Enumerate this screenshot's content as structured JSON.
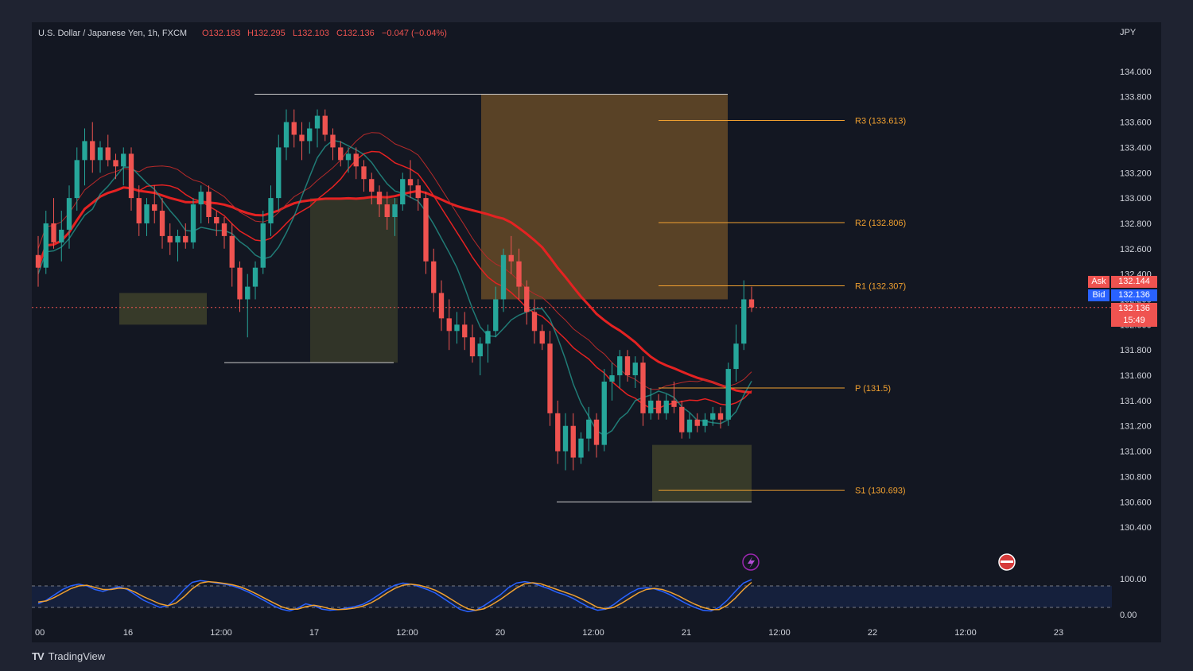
{
  "header": {
    "symbol": "U.S. Dollar / Japanese Yen, 1h, FXCM",
    "open": "O132.183",
    "high": "H132.295",
    "low": "L132.103",
    "close": "C132.136",
    "change": "−0.047 (−0.04%)"
  },
  "currency": "JPY",
  "brand": "TradingView",
  "quotes": {
    "ask_label": "Ask",
    "ask_value": "132.144",
    "bid_label": "Bid",
    "bid_value": "132.136",
    "last_value": "132.136",
    "countdown": "15:49"
  },
  "colors": {
    "background": "#131722",
    "up": "#26a69a",
    "down": "#ef5350",
    "pivot": "#f0a030",
    "ema": "#e52222",
    "stoch_k": "#2962ff",
    "stoch_d": "#f0a030"
  },
  "chart_data": [
    {
      "type": "candlestick",
      "pair": "USD/JPY",
      "timeframe": "1h",
      "ylim": [
        130.25,
        134.15
      ],
      "y_ticks": [
        134.0,
        133.8,
        133.6,
        133.4,
        133.2,
        133.0,
        132.8,
        132.6,
        132.4,
        132.2,
        132.0,
        131.8,
        131.6,
        131.4,
        131.2,
        131.0,
        130.8,
        130.6,
        130.4
      ],
      "y_tick_labels": [
        "134.000",
        "133.800",
        "133.600",
        "133.400",
        "133.200",
        "133.000",
        "132.800",
        "132.600",
        "132.400",
        "132.200",
        "132.000",
        "131.800",
        "131.600",
        "131.400",
        "131.200",
        "131.000",
        "130.800",
        "130.600",
        "130.400"
      ],
      "x_tick_labels": [
        "00",
        "16",
        "12:00",
        "17",
        "12:00",
        "20",
        "12:00",
        "21",
        "12:00",
        "22",
        "12:00",
        "23"
      ],
      "pivot_levels": [
        {
          "label": "R3 (133.613)",
          "value": 133.613
        },
        {
          "label": "R2 (132.806)",
          "value": 132.806
        },
        {
          "label": "R1 (132.307)",
          "value": 132.307
        },
        {
          "label": "P (131.5)",
          "value": 131.5
        },
        {
          "label": "S1 (130.693)",
          "value": 130.693
        }
      ],
      "last_price": 132.136,
      "ohlc": [
        [
          132.55,
          132.7,
          132.3,
          132.45
        ],
        [
          132.45,
          132.9,
          132.4,
          132.8
        ],
        [
          132.8,
          133.0,
          132.6,
          132.65
        ],
        [
          132.65,
          132.9,
          132.5,
          132.75
        ],
        [
          132.75,
          133.1,
          132.6,
          133.0
        ],
        [
          133.0,
          133.4,
          132.9,
          133.3
        ],
        [
          133.3,
          133.55,
          133.1,
          133.45
        ],
        [
          133.45,
          133.6,
          133.2,
          133.3
        ],
        [
          133.3,
          133.45,
          133.2,
          133.4
        ],
        [
          133.4,
          133.5,
          133.25,
          133.3
        ],
        [
          133.3,
          133.35,
          133.15,
          133.25
        ],
        [
          133.25,
          133.4,
          133.1,
          133.35
        ],
        [
          133.35,
          133.4,
          132.9,
          133.0
        ],
        [
          133.0,
          133.1,
          132.7,
          132.8
        ],
        [
          132.8,
          133.0,
          132.7,
          132.95
        ],
        [
          132.95,
          133.1,
          132.8,
          132.9
        ],
        [
          132.9,
          133.0,
          132.6,
          132.7
        ],
        [
          132.7,
          132.8,
          132.55,
          132.65
        ],
        [
          132.65,
          132.75,
          132.5,
          132.7
        ],
        [
          132.7,
          132.8,
          132.6,
          132.65
        ],
        [
          132.65,
          133.0,
          132.6,
          132.95
        ],
        [
          132.95,
          133.1,
          132.8,
          133.05
        ],
        [
          133.05,
          133.1,
          132.8,
          132.85
        ],
        [
          132.85,
          132.9,
          132.7,
          132.8
        ],
        [
          132.8,
          132.85,
          132.6,
          132.7
        ],
        [
          132.7,
          132.8,
          132.3,
          132.45
        ],
        [
          132.45,
          132.5,
          132.1,
          132.2
        ],
        [
          132.2,
          132.4,
          131.9,
          132.3
        ],
        [
          132.3,
          132.5,
          132.2,
          132.45
        ],
        [
          132.45,
          132.9,
          132.4,
          132.8
        ],
        [
          132.8,
          133.1,
          132.7,
          133.0
        ],
        [
          133.0,
          133.5,
          132.9,
          133.4
        ],
        [
          133.4,
          133.7,
          133.3,
          133.6
        ],
        [
          133.6,
          133.7,
          133.4,
          133.5
        ],
        [
          133.5,
          133.6,
          133.3,
          133.45
        ],
        [
          133.45,
          133.6,
          133.35,
          133.55
        ],
        [
          133.55,
          133.7,
          133.4,
          133.65
        ],
        [
          133.65,
          133.7,
          133.45,
          133.5
        ],
        [
          133.5,
          133.55,
          133.3,
          133.4
        ],
        [
          133.4,
          133.45,
          133.25,
          133.3
        ],
        [
          133.3,
          133.4,
          133.2,
          133.35
        ],
        [
          133.35,
          133.4,
          133.15,
          133.25
        ],
        [
          133.25,
          133.3,
          133.05,
          133.15
        ],
        [
          133.15,
          133.2,
          132.95,
          133.05
        ],
        [
          133.05,
          133.1,
          132.85,
          132.95
        ],
        [
          132.95,
          133.05,
          132.75,
          132.85
        ],
        [
          132.85,
          133.0,
          132.7,
          132.95
        ],
        [
          132.95,
          133.2,
          132.9,
          133.15
        ],
        [
          133.15,
          133.3,
          133.0,
          133.1
        ],
        [
          133.1,
          133.15,
          132.9,
          133.0
        ],
        [
          133.0,
          133.05,
          132.4,
          132.5
        ],
        [
          132.5,
          132.6,
          132.1,
          132.25
        ],
        [
          132.25,
          132.35,
          131.95,
          132.05
        ],
        [
          132.05,
          132.2,
          131.8,
          131.95
        ],
        [
          131.95,
          132.1,
          131.85,
          132.0
        ],
        [
          132.0,
          132.1,
          131.8,
          131.9
        ],
        [
          131.9,
          132.0,
          131.7,
          131.75
        ],
        [
          131.75,
          131.9,
          131.6,
          131.85
        ],
        [
          131.85,
          132.0,
          131.7,
          131.95
        ],
        [
          131.95,
          132.3,
          131.9,
          132.2
        ],
        [
          132.2,
          132.6,
          132.1,
          132.55
        ],
        [
          132.55,
          132.7,
          132.4,
          132.5
        ],
        [
          132.5,
          132.6,
          132.2,
          132.3
        ],
        [
          132.3,
          132.35,
          132.0,
          132.1
        ],
        [
          132.1,
          132.2,
          131.85,
          131.95
        ],
        [
          131.95,
          132.0,
          131.8,
          131.85
        ],
        [
          131.85,
          131.95,
          131.2,
          131.3
        ],
        [
          131.3,
          131.4,
          130.9,
          131.0
        ],
        [
          131.0,
          131.3,
          130.85,
          131.2
        ],
        [
          131.2,
          131.3,
          130.85,
          130.95
        ],
        [
          130.95,
          131.15,
          130.9,
          131.1
        ],
        [
          131.1,
          131.35,
          131.0,
          131.25
        ],
        [
          131.25,
          131.3,
          130.95,
          131.05
        ],
        [
          131.05,
          131.65,
          131.0,
          131.55
        ],
        [
          131.55,
          131.7,
          131.4,
          131.6
        ],
        [
          131.6,
          131.8,
          131.5,
          131.75
        ],
        [
          131.75,
          131.8,
          131.55,
          131.6
        ],
        [
          131.6,
          131.75,
          131.5,
          131.7
        ],
        [
          131.7,
          131.75,
          131.2,
          131.3
        ],
        [
          131.3,
          131.5,
          131.25,
          131.4
        ],
        [
          131.4,
          131.45,
          131.25,
          131.3
        ],
        [
          131.3,
          131.45,
          131.25,
          131.4
        ],
        [
          131.4,
          131.55,
          131.3,
          131.35
        ],
        [
          131.35,
          131.4,
          131.1,
          131.15
        ],
        [
          131.15,
          131.3,
          131.1,
          131.25
        ],
        [
          131.25,
          131.3,
          131.15,
          131.2
        ],
        [
          131.2,
          131.3,
          131.15,
          131.25
        ],
        [
          131.25,
          131.35,
          131.2,
          131.3
        ],
        [
          131.3,
          131.35,
          131.18,
          131.25
        ],
        [
          131.25,
          131.7,
          131.2,
          131.65
        ],
        [
          131.65,
          132.0,
          131.55,
          131.85
        ],
        [
          131.85,
          132.35,
          131.8,
          132.2
        ],
        [
          132.2,
          132.3,
          132.1,
          132.136
        ]
      ]
    },
    {
      "type": "line",
      "name": "Stochastic",
      "ylim": [
        0,
        100
      ],
      "y_tick_labels": [
        "100.00",
        "0.00"
      ],
      "bands": [
        80,
        20
      ],
      "series": [
        {
          "values": [
            30,
            40,
            55,
            70,
            80,
            85,
            80,
            70,
            65,
            72,
            78,
            70,
            55,
            40,
            30,
            20,
            25,
            45,
            70,
            90,
            95,
            92,
            88,
            85,
            80,
            72,
            62,
            50,
            38,
            25,
            15,
            10,
            18,
            30,
            25,
            15,
            12,
            14,
            18,
            22,
            28,
            40,
            55,
            70,
            82,
            88,
            85,
            78,
            70,
            60,
            45,
            30,
            15,
            8,
            12,
            25,
            40,
            55,
            75,
            88,
            92,
            88,
            80,
            72,
            62,
            55,
            45,
            32,
            20,
            12,
            15,
            28,
            45,
            60,
            72,
            75,
            72,
            65,
            55,
            42,
            30,
            20,
            12,
            10,
            20,
            40,
            65,
            88,
            98
          ]
        },
        {
          "values": [
            35,
            38,
            48,
            60,
            72,
            80,
            82,
            76,
            70,
            70,
            74,
            72,
            62,
            50,
            40,
            30,
            25,
            32,
            50,
            72,
            88,
            92,
            90,
            87,
            83,
            77,
            68,
            57,
            45,
            33,
            22,
            15,
            15,
            22,
            26,
            22,
            16,
            14,
            15,
            18,
            23,
            32,
            45,
            60,
            73,
            82,
            85,
            82,
            76,
            68,
            56,
            42,
            28,
            16,
            12,
            16,
            28,
            42,
            58,
            74,
            86,
            89,
            86,
            78,
            70,
            62,
            54,
            44,
            32,
            20,
            16,
            20,
            32,
            46,
            60,
            70,
            73,
            70,
            62,
            52,
            40,
            29,
            20,
            14,
            14,
            26,
            46,
            70,
            90
          ]
        }
      ]
    }
  ]
}
